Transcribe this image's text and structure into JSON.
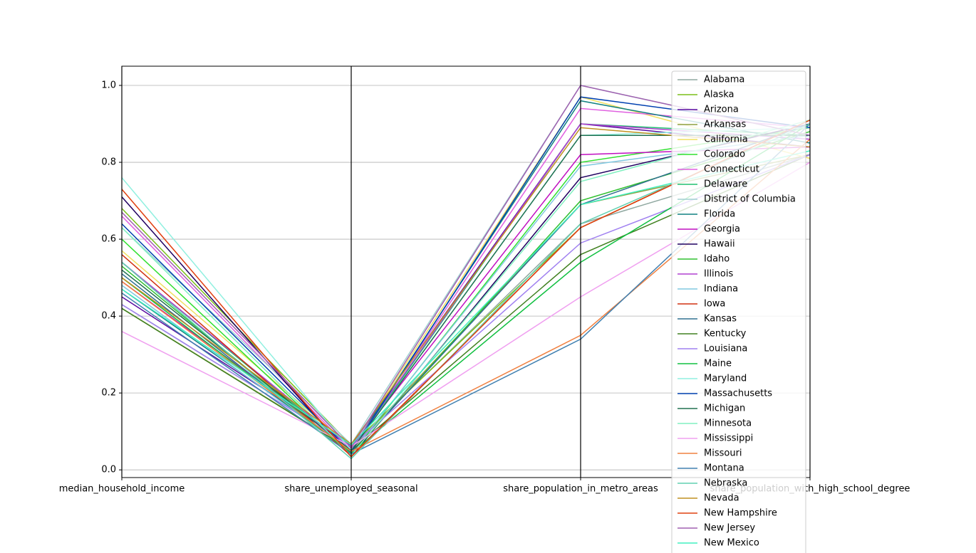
{
  "chart_data": {
    "type": "parallel_coordinates",
    "categories": [
      "median_household_income",
      "share_unemployed_seasonal",
      "share_population_in_metro_areas",
      "share_population_with_high_school_degree"
    ],
    "ylim": [
      -0.02,
      1.05
    ],
    "yticks": [
      {
        "value": 0,
        "label": "0.0"
      },
      0.2,
      0.4,
      0.6,
      0.8,
      {
        "value": 1,
        "label": "1.0"
      }
    ],
    "grid": true,
    "legend": "upper right",
    "series": [
      {
        "name": "Alabama",
        "color": "#8fa8a0",
        "values": [
          0.43,
          0.06,
          0.64,
          0.82
        ]
      },
      {
        "name": "Alaska",
        "color": "#7cbf1a",
        "values": [
          0.68,
          0.064,
          0.63,
          0.91
        ]
      },
      {
        "name": "Arizona",
        "color": "#5a0ca0",
        "values": [
          0.45,
          0.063,
          0.9,
          0.84
        ]
      },
      {
        "name": "Arkansas",
        "color": "#8fa040",
        "values": [
          0.42,
          0.052,
          0.69,
          0.82
        ]
      },
      {
        "name": "California",
        "color": "#f0e060",
        "values": [
          0.57,
          0.059,
          0.97,
          0.81
        ]
      },
      {
        "name": "Colorado",
        "color": "#30e030",
        "values": [
          0.6,
          0.04,
          0.8,
          0.89
        ]
      },
      {
        "name": "Connecticut",
        "color": "#e060e0",
        "values": [
          0.66,
          0.052,
          0.94,
          0.89
        ]
      },
      {
        "name": "Delaware",
        "color": "#20c070",
        "values": [
          0.54,
          0.049,
          0.9,
          0.87
        ]
      },
      {
        "name": "District of Columbia",
        "color": "#a0d0d0",
        "values": [
          0.63,
          0.067,
          1.0,
          0.87
        ]
      },
      {
        "name": "Florida",
        "color": "#108080",
        "values": [
          0.47,
          0.052,
          0.96,
          0.85
        ]
      },
      {
        "name": "Georgia",
        "color": "#c010c0",
        "values": [
          0.49,
          0.058,
          0.82,
          0.84
        ]
      },
      {
        "name": "Hawaii",
        "color": "#200060",
        "values": [
          0.71,
          0.034,
          0.76,
          0.9
        ]
      },
      {
        "name": "Idaho",
        "color": "#30c030",
        "values": [
          0.53,
          0.042,
          0.7,
          0.88
        ]
      },
      {
        "name": "Illinois",
        "color": "#b040d0",
        "values": [
          0.54,
          0.054,
          0.9,
          0.86
        ]
      },
      {
        "name": "Indiana",
        "color": "#80c8e0",
        "values": [
          0.48,
          0.044,
          0.79,
          0.87
        ]
      },
      {
        "name": "Iowa",
        "color": "#d03010",
        "values": [
          0.56,
          0.036,
          0.63,
          0.91
        ]
      },
      {
        "name": "Kansas",
        "color": "#307090",
        "values": [
          0.51,
          0.044,
          0.69,
          0.9
        ]
      },
      {
        "name": "Kentucky",
        "color": "#408020",
        "values": [
          0.42,
          0.05,
          0.56,
          0.82
        ]
      },
      {
        "name": "Louisiana",
        "color": "#a080f0",
        "values": [
          0.43,
          0.06,
          0.59,
          0.82
        ]
      },
      {
        "name": "Maine",
        "color": "#10c040",
        "values": [
          0.5,
          0.044,
          0.54,
          0.9
        ]
      },
      {
        "name": "Maryland",
        "color": "#90f0e0",
        "values": [
          0.76,
          0.051,
          0.87,
          0.89
        ]
      },
      {
        "name": "Massachusetts",
        "color": "#0040b0",
        "values": [
          0.64,
          0.046,
          0.97,
          0.89
        ]
      },
      {
        "name": "Michigan",
        "color": "#207050",
        "values": [
          0.52,
          0.05,
          0.87,
          0.87
        ]
      },
      {
        "name": "Minnesota",
        "color": "#80f0c0",
        "values": [
          0.63,
          0.038,
          0.75,
          0.91
        ]
      },
      {
        "name": "Mississippi",
        "color": "#f0a0f0",
        "values": [
          0.36,
          0.061,
          0.45,
          0.8
        ]
      },
      {
        "name": "Missouri",
        "color": "#f08040",
        "values": [
          0.49,
          0.048,
          0.35,
          0.86
        ]
      },
      {
        "name": "Montana",
        "color": "#4080b0",
        "values": [
          0.46,
          0.041,
          0.34,
          0.9
        ]
      },
      {
        "name": "Nebraska",
        "color": "#60d0b0",
        "values": [
          0.54,
          0.029,
          0.64,
          0.9
        ]
      },
      {
        "name": "Nevada",
        "color": "#c09020",
        "values": [
          0.5,
          0.067,
          0.89,
          0.84
        ]
      },
      {
        "name": "New Hampshire",
        "color": "#e04010",
        "values": [
          0.73,
          0.034,
          0.63,
          0.91
        ]
      },
      {
        "name": "New Jersey",
        "color": "#a060b0",
        "values": [
          0.67,
          0.058,
          1.0,
          0.87
        ]
      },
      {
        "name": "New Mexico",
        "color": "#40f0c0",
        "values": [
          0.47,
          0.065,
          0.69,
          0.83
        ]
      }
    ]
  }
}
